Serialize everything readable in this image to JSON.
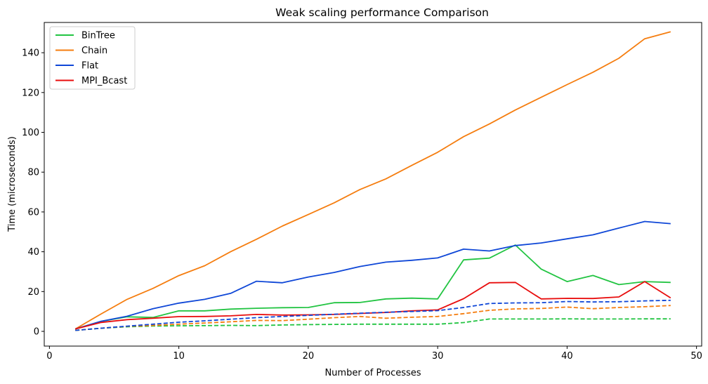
{
  "chart_data": {
    "type": "line",
    "title": "Weak scaling performance Comparison",
    "xlabel": "Number of Processes",
    "ylabel": "Time (microseconds)",
    "xlim": [
      -0.4,
      50.4
    ],
    "ylim": [
      -7.4,
      155.2
    ],
    "xticks": [
      0,
      10,
      20,
      30,
      40,
      50
    ],
    "yticks": [
      0,
      20,
      40,
      60,
      80,
      100,
      120,
      140
    ],
    "grid": false,
    "legend_position": "top-left",
    "x": [
      2,
      4,
      6,
      8,
      10,
      12,
      14,
      16,
      18,
      20,
      22,
      24,
      26,
      28,
      30,
      32,
      34,
      36,
      38,
      40,
      42,
      44,
      46,
      48
    ],
    "series": [
      {
        "name": "BinTree",
        "color": "#22c442",
        "dash": "solid",
        "values": [
          1.2,
          5.0,
          7.3,
          7.0,
          10.3,
          10.3,
          11.2,
          11.6,
          11.9,
          12.0,
          14.4,
          14.5,
          16.3,
          16.7,
          16.3,
          35.9,
          36.8,
          43.4,
          31.3,
          25.0,
          28.1,
          23.5,
          25.0,
          24.6
        ]
      },
      {
        "name": "Chain",
        "color": "#f57d0f",
        "dash": "solid",
        "values": [
          1.2,
          8.8,
          16.1,
          21.6,
          28.0,
          33.0,
          40.0,
          46.3,
          52.9,
          58.7,
          64.6,
          71.3,
          76.6,
          83.4,
          90.0,
          97.8,
          104.2,
          111.2,
          117.6,
          124.0,
          130.2,
          137.2,
          147.0,
          150.5
        ]
      },
      {
        "name": "Flat",
        "color": "#0f47d7",
        "dash": "solid",
        "values": [
          1.2,
          5.1,
          7.6,
          11.4,
          14.2,
          16.1,
          19.1,
          25.2,
          24.4,
          27.3,
          29.6,
          32.6,
          34.8,
          35.7,
          36.9,
          41.3,
          40.4,
          43.1,
          44.4,
          46.5,
          48.5,
          51.9,
          55.2,
          54.1
        ]
      },
      {
        "name": "MPI_Bcast",
        "color": "#e80e0e",
        "dash": "solid",
        "values": [
          1.2,
          4.5,
          5.9,
          6.6,
          7.4,
          7.5,
          7.8,
          8.5,
          8.2,
          8.3,
          8.5,
          9.0,
          9.5,
          10.3,
          10.8,
          16.4,
          24.4,
          24.6,
          16.3,
          16.6,
          16.5,
          17.3,
          25.0,
          16.8
        ]
      },
      {
        "color": "#22c442",
        "dash": "dashed",
        "values": [
          0.5,
          1.6,
          2.3,
          2.7,
          2.8,
          2.9,
          3.0,
          2.9,
          3.2,
          3.4,
          3.5,
          3.6,
          3.6,
          3.6,
          3.6,
          4.4,
          6.2,
          6.2,
          6.2,
          6.3,
          6.2,
          6.2,
          6.3,
          6.3
        ]
      },
      {
        "color": "#f57d0f",
        "dash": "dashed",
        "values": [
          0.5,
          1.6,
          2.5,
          3.0,
          3.6,
          4.2,
          4.8,
          5.5,
          5.4,
          6.1,
          6.9,
          7.5,
          6.6,
          7.1,
          7.5,
          8.9,
          10.6,
          11.3,
          11.5,
          12.2,
          11.4,
          12.0,
          12.4,
          13.0
        ]
      },
      {
        "color": "#0f47d7",
        "dash": "dashed",
        "values": [
          0.5,
          1.6,
          2.6,
          3.6,
          4.6,
          5.3,
          6.1,
          6.9,
          7.5,
          8.0,
          8.6,
          9.1,
          9.6,
          10.0,
          10.4,
          12.0,
          14.0,
          14.3,
          14.4,
          15.0,
          14.8,
          14.9,
          15.3,
          15.6
        ]
      }
    ]
  }
}
